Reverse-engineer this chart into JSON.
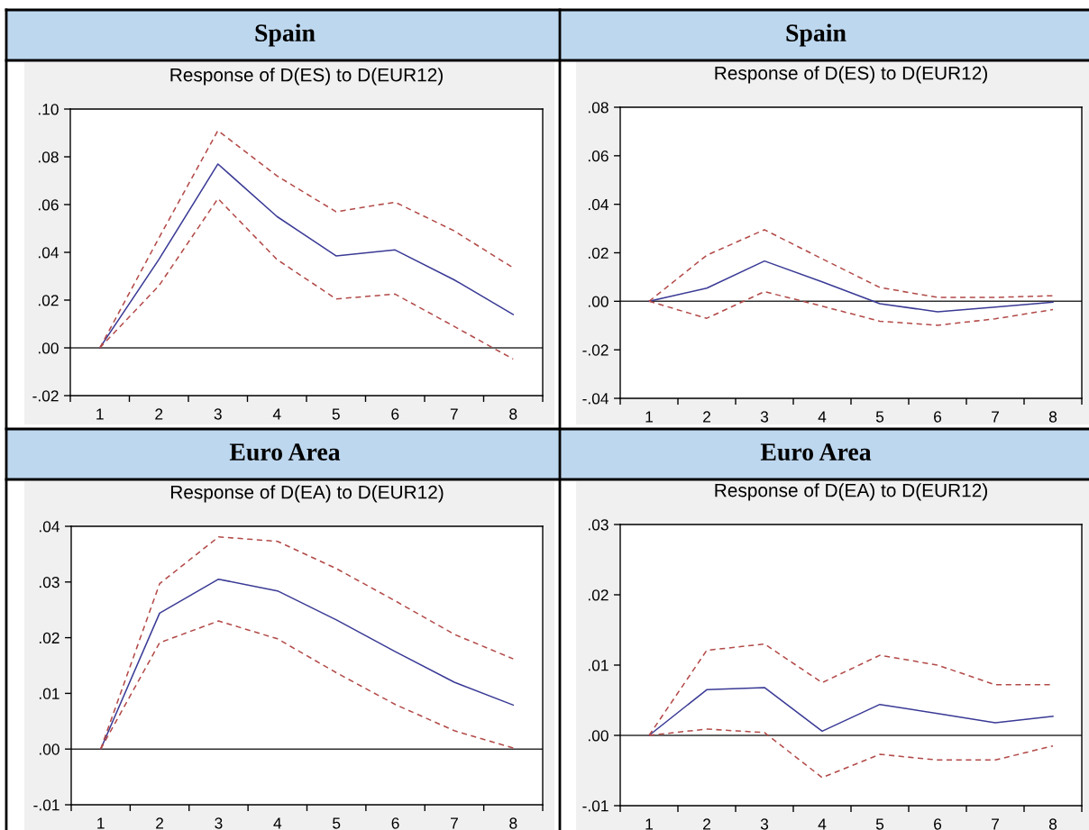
{
  "chart_data": [
    {
      "type": "line",
      "title": "Spain",
      "subtitle": "Response of D(ES) to D(EUR12)",
      "categories": [
        "1",
        "2",
        "3",
        "4",
        "5",
        "6",
        "7",
        "8"
      ],
      "series": [
        {
          "color": "#3a3a96",
          "values": [
            0,
            0.037,
            0.077,
            0.055,
            0.0385,
            0.041,
            0.0285,
            0.014
          ]
        },
        {
          "color": "#b24a48",
          "line_style": "dashed",
          "values": [
            0,
            0.046,
            0.091,
            0.072,
            0.057,
            0.061,
            0.049,
            0.0335
          ]
        },
        {
          "color": "#b24a48",
          "line_style": "dashed",
          "values": [
            0,
            0.026,
            0.0625,
            0.037,
            0.0205,
            0.0225,
            0.009,
            -0.0047
          ]
        }
      ],
      "ylim": [
        -0.02,
        0.1
      ],
      "yticks": [
        {
          "value": -0.02,
          "label": "-.02"
        },
        {
          "value": 0.0,
          "label": ".00"
        },
        {
          "value": 0.02,
          "label": ".02"
        },
        {
          "value": 0.04,
          "label": ".04"
        },
        {
          "value": 0.06,
          "label": ".06"
        },
        {
          "value": 0.08,
          "label": ".08"
        },
        {
          "value": 0.1,
          "label": ".10"
        }
      ],
      "ref_lines": [
        {
          "axis": "y",
          "value": 0,
          "color": "#303030"
        }
      ]
    },
    {
      "type": "line",
      "title": "Spain",
      "subtitle": "Response of D(ES) to D(EUR12)",
      "categories": [
        "1",
        "2",
        "3",
        "4",
        "5",
        "6",
        "7",
        "8"
      ],
      "series": [
        {
          "color": "#3a3a96",
          "values": [
            0,
            0.0054,
            0.0166,
            0.008,
            -0.001,
            -0.0043,
            -0.0024,
            -0.0004
          ]
        },
        {
          "color": "#b24a48",
          "line_style": "dashed",
          "values": [
            0,
            0.019,
            0.0295,
            0.0175,
            0.0057,
            0.0016,
            0.0016,
            0.0023
          ]
        },
        {
          "color": "#b24a48",
          "line_style": "dashed",
          "values": [
            0,
            -0.007,
            0.004,
            -0.002,
            -0.0082,
            -0.0099,
            -0.0072,
            -0.0034
          ]
        }
      ],
      "ylim": [
        -0.04,
        0.08
      ],
      "yticks": [
        {
          "value": -0.04,
          "label": "-.04"
        },
        {
          "value": -0.02,
          "label": "-.02"
        },
        {
          "value": 0.0,
          "label": ".00"
        },
        {
          "value": 0.02,
          "label": ".02"
        },
        {
          "value": 0.04,
          "label": ".04"
        },
        {
          "value": 0.06,
          "label": ".06"
        },
        {
          "value": 0.08,
          "label": ".08"
        }
      ],
      "ref_lines": [
        {
          "axis": "y",
          "value": 0,
          "color": "#303030"
        }
      ]
    },
    {
      "type": "line",
      "title": "Euro Area",
      "subtitle": "Response of D(EA) to D(EUR12)",
      "categories": [
        "1",
        "2",
        "3",
        "4",
        "5",
        "6",
        "7",
        "8"
      ],
      "series": [
        {
          "color": "#3a3a96",
          "values": [
            0,
            0.0244,
            0.0305,
            0.0284,
            0.0232,
            0.0175,
            0.012,
            0.0079
          ]
        },
        {
          "color": "#b24a48",
          "line_style": "dashed",
          "values": [
            0,
            0.0297,
            0.0381,
            0.0373,
            0.0324,
            0.0266,
            0.0206,
            0.0162
          ]
        },
        {
          "color": "#b24a48",
          "line_style": "dashed",
          "values": [
            0,
            0.0191,
            0.023,
            0.0198,
            0.0137,
            0.008,
            0.0033,
            0.0002
          ]
        }
      ],
      "ylim": [
        -0.01,
        0.04
      ],
      "yticks": [
        {
          "value": -0.01,
          "label": "-.01"
        },
        {
          "value": 0.0,
          "label": ".00"
        },
        {
          "value": 0.01,
          "label": ".01"
        },
        {
          "value": 0.02,
          "label": ".02"
        },
        {
          "value": 0.03,
          "label": ".03"
        },
        {
          "value": 0.04,
          "label": ".04"
        }
      ],
      "ref_lines": [
        {
          "axis": "y",
          "value": 0,
          "color": "#303030"
        }
      ]
    },
    {
      "type": "line",
      "title": "Euro Area",
      "subtitle": "Response of D(EA) to D(EUR12)",
      "categories": [
        "1",
        "2",
        "3",
        "4",
        "5",
        "6",
        "7",
        "8"
      ],
      "series": [
        {
          "color": "#3a3a96",
          "values": [
            0,
            0.0065,
            0.0068,
            0.0006,
            0.0044,
            0.0031,
            0.0018,
            0.0027
          ]
        },
        {
          "color": "#b24a48",
          "line_style": "dashed",
          "values": [
            0,
            0.0121,
            0.013,
            0.0075,
            0.0114,
            0.01,
            0.0072,
            0.0072
          ]
        },
        {
          "color": "#b24a48",
          "line_style": "dashed",
          "values": [
            0,
            0.0009,
            0.0004,
            -0.006,
            -0.0027,
            -0.0035,
            -0.0035,
            -0.0015
          ]
        }
      ],
      "ylim": [
        -0.01,
        0.03
      ],
      "yticks": [
        {
          "value": -0.01,
          "label": "-.01"
        },
        {
          "value": 0.0,
          "label": ".00"
        },
        {
          "value": 0.01,
          "label": ".01"
        },
        {
          "value": 0.02,
          "label": ".02"
        },
        {
          "value": 0.03,
          "label": ".03"
        }
      ],
      "ref_lines": [
        {
          "axis": "y",
          "value": 0,
          "color": "#303030"
        }
      ]
    }
  ]
}
